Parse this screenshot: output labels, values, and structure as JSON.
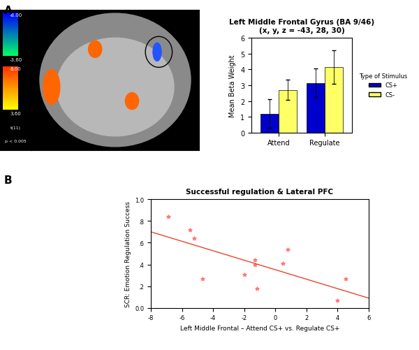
{
  "panel_labels": [
    "A",
    "B"
  ],
  "chart_data": [
    {
      "type": "colorbar",
      "stat": "t(11)",
      "threshold": "p < 0.005",
      "segments": [
        {
          "from": {
            "value": -8,
            "label": "-8.00"
          },
          "to": {
            "value": -3.6,
            "label": "-3.60"
          },
          "colors": [
            "#00ff66",
            "#0000ff"
          ]
        },
        {
          "from": {
            "value": 8,
            "label": "8.00"
          },
          "to": {
            "value": 3.6,
            "label": "3.60"
          },
          "colors": [
            "#ffff00",
            "#ff3300"
          ]
        }
      ]
    },
    {
      "type": "bar",
      "title": "Left Middle Frontal Gyrus (BA 9/46)",
      "subtitle": "(x, y, z = -43, 28, 30)",
      "y_label": "Mean Beta Weight",
      "legend_title": "Type of Stimulus",
      "legend": "right",
      "categories": [
        "Attend",
        "Regulate"
      ],
      "series": [
        {
          "name": "CS+",
          "color": "#0000cc",
          "values": [
            1.2,
            3.15
          ],
          "errors": [
            0.9,
            0.9
          ]
        },
        {
          "name": "CS-",
          "color": "#ffff66",
          "values": [
            2.7,
            4.15
          ],
          "errors": [
            0.65,
            1.05
          ]
        }
      ],
      "ylim": [
        0,
        6
      ],
      "yticks": [
        0,
        1,
        2,
        3,
        4,
        5,
        6
      ],
      "grid": false
    },
    {
      "type": "scatter",
      "title": "Successful regulation & Lateral PFC",
      "x_label": "Left Middle Frontal – Attend CS+ vs. Regulate CS+",
      "y_label": "SCR: Emotion Regulation Success",
      "x": [
        -6.9,
        -5.5,
        -5.2,
        -4.7,
        -2.0,
        -1.3,
        -1.3,
        -1.2,
        0.5,
        0.8,
        4.0,
        4.5
      ],
      "values": [
        0.84,
        0.72,
        0.64,
        0.27,
        0.31,
        0.44,
        0.4,
        0.18,
        0.41,
        0.54,
        0.07,
        0.27
      ],
      "color": "#ff7777",
      "marker": "*",
      "fit": {
        "x": [
          -8,
          6
        ],
        "y": [
          0.7,
          0.09
        ],
        "color": "#e8452c"
      },
      "xlim": [
        -8,
        6
      ],
      "xticks": [
        -8,
        -6,
        -4,
        -2,
        0,
        2,
        4,
        6
      ],
      "ylim": [
        0,
        1
      ],
      "yticks": [
        {
          "value": 0,
          "label": "0.0"
        },
        {
          "value": 0.2,
          "label": ".2"
        },
        {
          "value": 0.4,
          "label": ".4"
        },
        {
          "value": 0.6,
          "label": ".6"
        },
        {
          "value": 0.8,
          "label": ".8"
        },
        {
          "value": 1,
          "label": "1.0"
        }
      ],
      "grid": false
    }
  ]
}
